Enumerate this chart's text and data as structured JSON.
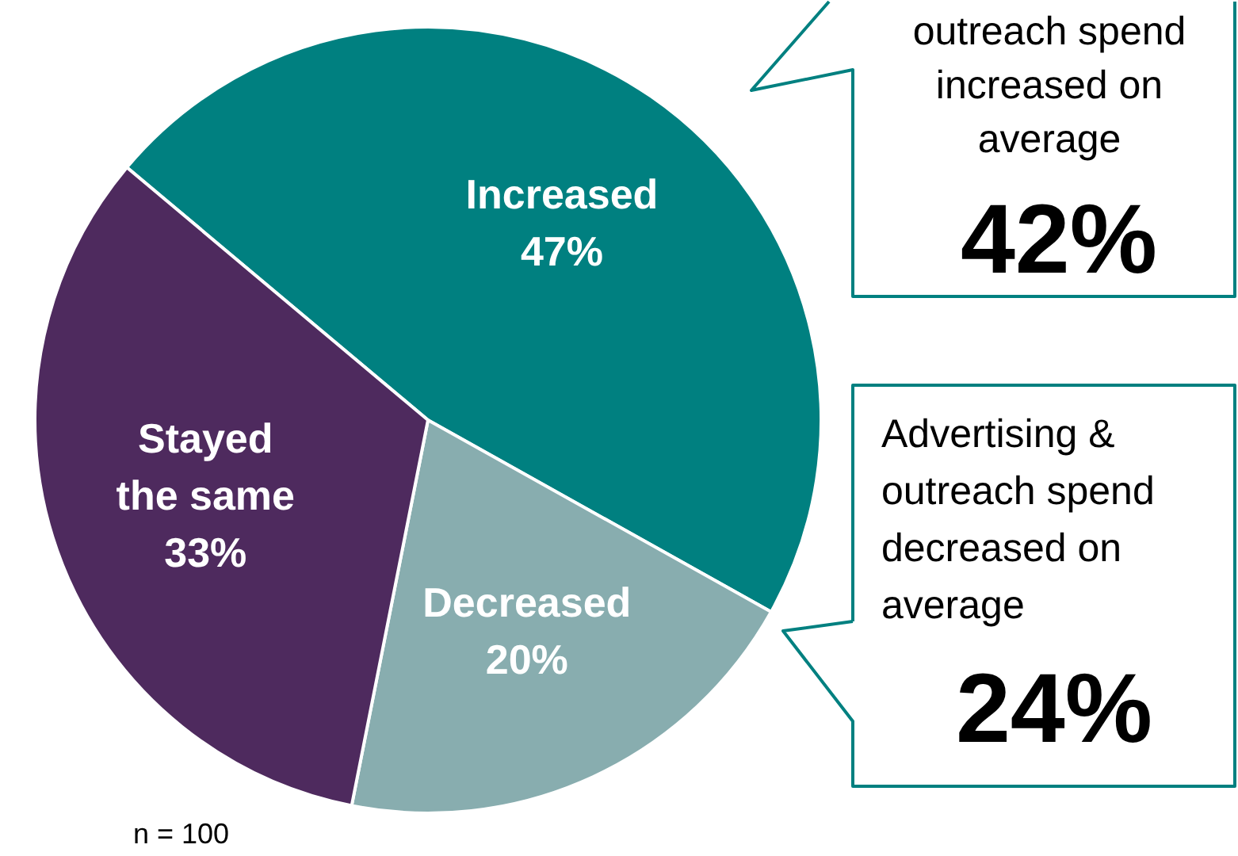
{
  "chart_data": {
    "type": "pie",
    "categories": [
      "Increased",
      "Decreased",
      "Stayed the same"
    ],
    "values": [
      47,
      20,
      33
    ],
    "value_labels": [
      "47%",
      "20%",
      "33%"
    ],
    "colors": [
      "#008080",
      "#88adaf",
      "#4e2a5e"
    ],
    "annotations": [
      "outreach spend increased on average",
      "42%",
      "Advertising & outreach spend decreased on average",
      "24%",
      "n = 100"
    ]
  }
}
